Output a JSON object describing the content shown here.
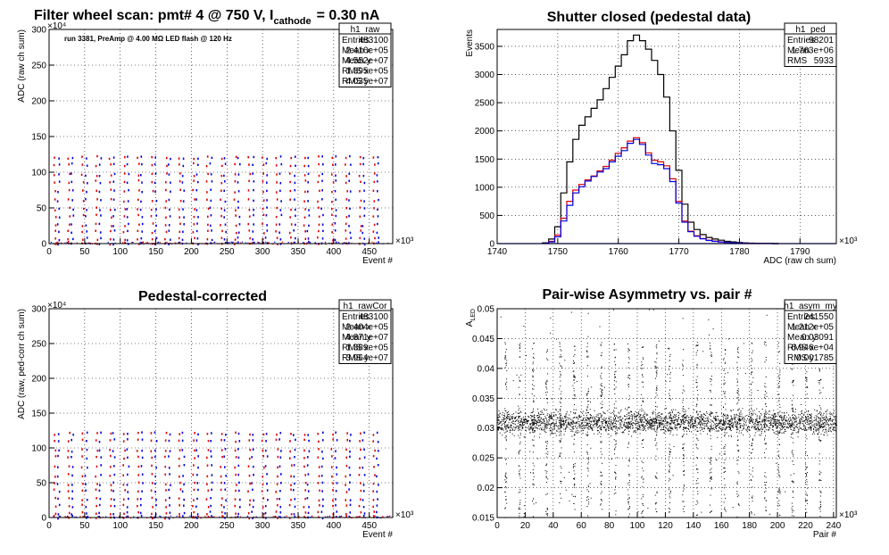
{
  "chart_data": [
    {
      "id": "raw",
      "type": "scatter",
      "title": "Filter wheel scan: pmt#   4 @   750 V, I",
      "title_sub": "cathode",
      "title_tail": "= 0.30 nA",
      "note": "run 3381, PreAmp @ 4.00 MΩ  LED flash @  120 Hz",
      "xlabel": "Event #",
      "ylabel": "ADC (raw ch sum)",
      "x_exp": "×10³",
      "y_exp": "×10⁴",
      "xlim": [
        0,
        483
      ],
      "ylim": [
        0,
        300
      ],
      "xticks": [
        0,
        50,
        100,
        150,
        200,
        250,
        300,
        350,
        400,
        450
      ],
      "yticks": [
        0,
        50,
        100,
        150,
        200,
        250,
        300
      ],
      "colors": {
        "series_a": "#e00000",
        "series_b": "#0000e0"
      },
      "period": 19.5,
      "levels": [
        122,
        112,
        98,
        88,
        75,
        62,
        50,
        40,
        28,
        18,
        8,
        2
      ],
      "stats": {
        "name": "h1_raw",
        "rows": [
          {
            "label": "Entries",
            "value": "483100"
          },
          {
            "label": "Mean x",
            "value": "2.416e+05"
          },
          {
            "label": "Mean y",
            "value": "4.552e+07"
          },
          {
            "label": "RMS x",
            "value": "1.395e+05"
          },
          {
            "label": "RMS y",
            "value": "4.035e+07"
          }
        ]
      }
    },
    {
      "id": "ped",
      "type": "line",
      "title": "Shutter closed (pedestal data)",
      "xlabel": "ADC (raw ch sum)",
      "ylabel": "Events",
      "x_exp": "×10³",
      "xlim": [
        1740,
        1796
      ],
      "ylim": [
        0,
        3800
      ],
      "xticks": [
        1740,
        1750,
        1760,
        1770,
        1780,
        1790
      ],
      "yticks": [
        0,
        500,
        1000,
        1500,
        2000,
        2500,
        3000,
        3500
      ],
      "series": [
        {
          "color": "#000000",
          "x": [
            1748,
            1749,
            1750,
            1751,
            1752,
            1753,
            1754,
            1755,
            1756,
            1757,
            1758,
            1759,
            1760,
            1761,
            1762,
            1763,
            1764,
            1765,
            1766,
            1767,
            1768,
            1769,
            1770,
            1771,
            1772,
            1773,
            1774,
            1775,
            1776,
            1777,
            1778,
            1779,
            1780,
            1781,
            1782,
            1783,
            1784,
            1785,
            1786
          ],
          "y": [
            15,
            80,
            300,
            900,
            1450,
            1850,
            2100,
            2250,
            2400,
            2550,
            2750,
            2950,
            3150,
            3350,
            3600,
            3700,
            3600,
            3450,
            3250,
            3000,
            2600,
            2000,
            1300,
            700,
            380,
            250,
            160,
            110,
            80,
            60,
            40,
            30,
            20,
            12,
            8,
            5,
            3,
            2,
            0
          ]
        },
        {
          "color": "#e00000",
          "x": [
            1748,
            1749,
            1750,
            1751,
            1752,
            1753,
            1754,
            1755,
            1756,
            1757,
            1758,
            1759,
            1760,
            1761,
            1762,
            1763,
            1764,
            1765,
            1766,
            1767,
            1768,
            1769,
            1770,
            1771,
            1772,
            1773,
            1774,
            1775,
            1776,
            1777,
            1778,
            1779,
            1780,
            1781,
            1782,
            1783,
            1784,
            1785,
            1786
          ],
          "y": [
            8,
            40,
            150,
            450,
            750,
            950,
            1050,
            1130,
            1200,
            1290,
            1370,
            1480,
            1600,
            1700,
            1820,
            1880,
            1790,
            1610,
            1480,
            1450,
            1380,
            1150,
            750,
            400,
            220,
            140,
            90,
            60,
            45,
            30,
            22,
            15,
            10,
            6,
            4,
            3,
            2,
            1,
            0
          ]
        },
        {
          "color": "#0000e0",
          "x": [
            1748,
            1749,
            1750,
            1751,
            1752,
            1753,
            1754,
            1755,
            1756,
            1757,
            1758,
            1759,
            1760,
            1761,
            1762,
            1763,
            1764,
            1765,
            1766,
            1767,
            1768,
            1769,
            1770,
            1771,
            1772,
            1773,
            1774,
            1775,
            1776,
            1777,
            1778,
            1779,
            1780,
            1781,
            1782,
            1783,
            1784,
            1785,
            1786
          ],
          "y": [
            6,
            30,
            120,
            400,
            680,
            900,
            1010,
            1110,
            1190,
            1270,
            1330,
            1450,
            1550,
            1650,
            1780,
            1850,
            1760,
            1570,
            1420,
            1400,
            1330,
            1100,
            720,
            380,
            210,
            130,
            85,
            55,
            40,
            28,
            20,
            14,
            9,
            5,
            3,
            2,
            1,
            1,
            0
          ]
        }
      ],
      "stats": {
        "name": "h1_ped",
        "rows": [
          {
            "label": "Entries",
            "value": "98201"
          },
          {
            "label": "Mean",
            "value": "1.763e+06"
          },
          {
            "label": "RMS",
            "value": "5933"
          }
        ]
      }
    },
    {
      "id": "rawcor",
      "type": "scatter",
      "title": "Pedestal-corrected",
      "xlabel": "Event #",
      "ylabel": "ADC (raw, ped-corr ch sum)",
      "x_exp": "×10³",
      "y_exp": "×10⁴",
      "xlim": [
        0,
        483
      ],
      "ylim": [
        0,
        300
      ],
      "xticks": [
        0,
        50,
        100,
        150,
        200,
        250,
        300,
        350,
        400,
        450
      ],
      "yticks": [
        0,
        50,
        100,
        150,
        200,
        250,
        300
      ],
      "colors": {
        "series_a": "#e00000",
        "series_b": "#0000e0"
      },
      "period": 19.5,
      "levels": [
        122,
        112,
        98,
        88,
        75,
        62,
        50,
        40,
        28,
        18,
        8,
        2
      ],
      "stats": {
        "name": "h1_rawCor",
        "rows": [
          {
            "label": "Entries",
            "value": "483100"
          },
          {
            "label": "Mean x",
            "value": "2.404e+05"
          },
          {
            "label": "Mean y",
            "value": "4.871e+07"
          },
          {
            "label": "RMS x",
            "value": "1.389e+05"
          },
          {
            "label": "RMS y",
            "value": "3.964e+07"
          }
        ]
      }
    },
    {
      "id": "asym",
      "type": "scatter",
      "title": "Pair-wise Asymmetry vs. pair #",
      "xlabel": "Pair #",
      "ylabel": "A",
      "ylabel_sub": "LED",
      "x_exp": "×10³",
      "xlim": [
        0,
        242
      ],
      "ylim": [
        0.015,
        0.05
      ],
      "xticks": [
        0,
        20,
        40,
        60,
        80,
        100,
        120,
        140,
        160,
        180,
        200,
        220,
        240
      ],
      "yticks": [
        0.015,
        0.02,
        0.025,
        0.03,
        0.035,
        0.04,
        0.045,
        0.05
      ],
      "center": 0.031,
      "spread": 0.0018,
      "spike_period": 9.75,
      "stats": {
        "name": "h1_asym_my",
        "rows": [
          {
            "label": "Entries",
            "value": "241550"
          },
          {
            "label": "Mean x",
            "value": "1.212e+05"
          },
          {
            "label": "Mean y",
            "value": "0.03091"
          },
          {
            "label": "RMS x",
            "value": "6.946e+04"
          },
          {
            "label": "RMS y",
            "value": "0.001785"
          }
        ]
      }
    }
  ]
}
